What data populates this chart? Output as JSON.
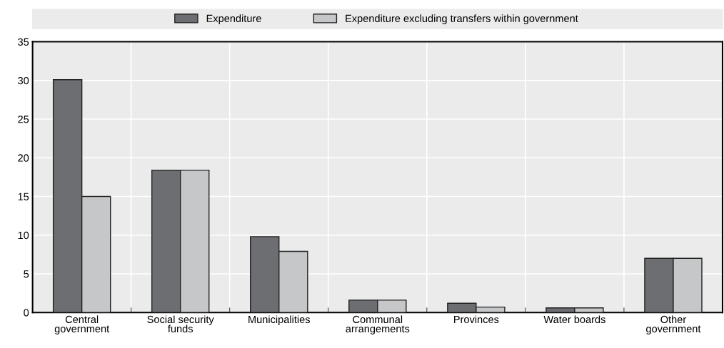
{
  "chart_data": {
    "type": "bar",
    "categories": [
      "Central\ngovernment",
      "Social security\nfunds",
      "Municipalities",
      "Communal\narrangements",
      "Provinces",
      "Water boards",
      "Other\ngovernment"
    ],
    "series": [
      {
        "name": "Expenditure",
        "color": "#6d6e71",
        "values": [
          30.1,
          18.4,
          9.8,
          1.6,
          1.2,
          0.6,
          7.0
        ]
      },
      {
        "name": "Expenditure excluding transfers within government",
        "color": "#c6c7c8",
        "values": [
          15.0,
          18.4,
          7.9,
          1.6,
          0.7,
          0.6,
          7.0
        ]
      }
    ],
    "ylim": [
      0,
      35
    ],
    "yticks": [
      0,
      5,
      10,
      15,
      20,
      25,
      30,
      35
    ],
    "grid": true,
    "legend": "top"
  }
}
